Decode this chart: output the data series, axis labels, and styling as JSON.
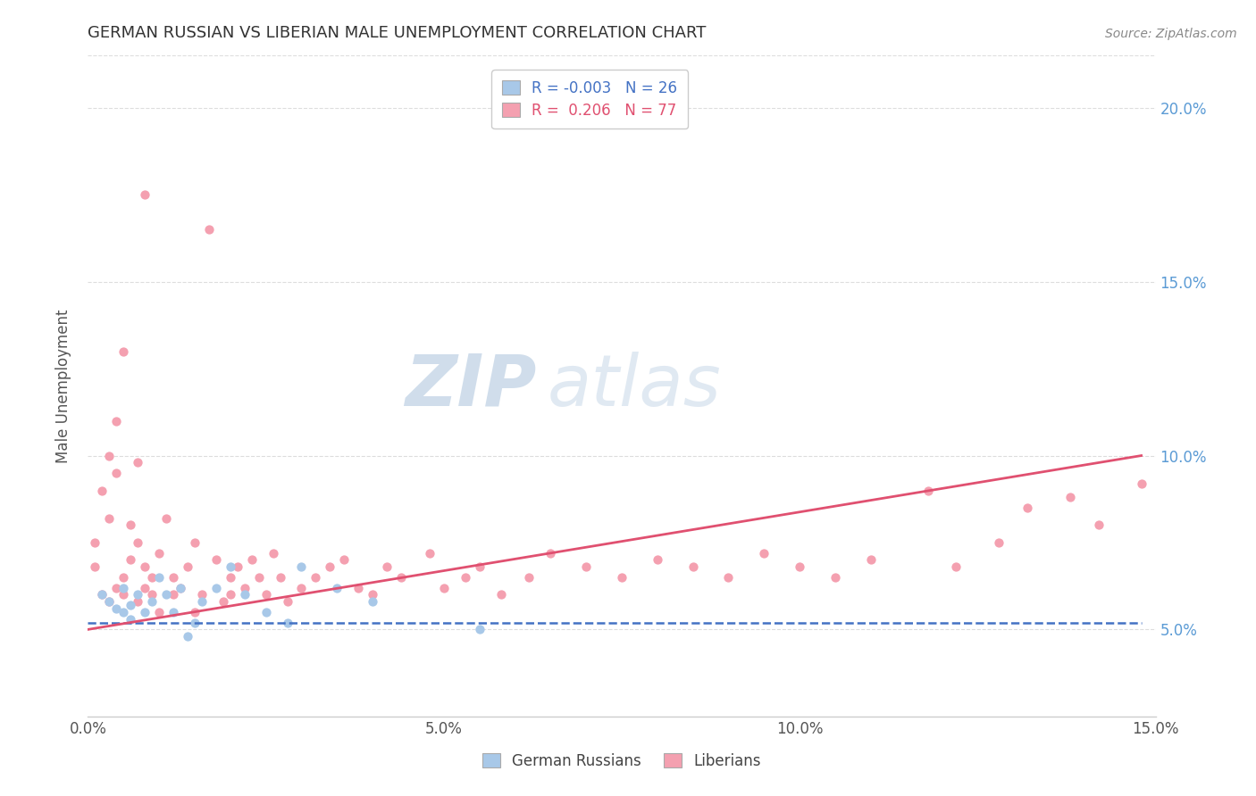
{
  "title": "GERMAN RUSSIAN VS LIBERIAN MALE UNEMPLOYMENT CORRELATION CHART",
  "source": "Source: ZipAtlas.com",
  "ylabel": "Male Unemployment",
  "xlim": [
    0.0,
    0.15
  ],
  "ylim": [
    0.025,
    0.215
  ],
  "xticks": [
    0.0,
    0.05,
    0.1,
    0.15
  ],
  "xtick_labels": [
    "0.0%",
    "5.0%",
    "10.0%",
    "15.0%"
  ],
  "yticks_right": [
    0.05,
    0.1,
    0.15,
    0.2
  ],
  "ytick_labels_right": [
    "5.0%",
    "10.0%",
    "15.0%",
    "20.0%"
  ],
  "color_blue": "#a8c8e8",
  "color_pink": "#f4a0b0",
  "color_blue_line": "#4472c4",
  "color_pink_line": "#e05070",
  "watermark_zip": "ZIP",
  "watermark_atlas": "atlas",
  "blue_scatter_x": [
    0.002,
    0.003,
    0.004,
    0.005,
    0.005,
    0.006,
    0.006,
    0.007,
    0.008,
    0.009,
    0.01,
    0.011,
    0.012,
    0.013,
    0.014,
    0.015,
    0.016,
    0.018,
    0.02,
    0.022,
    0.025,
    0.028,
    0.03,
    0.035,
    0.04,
    0.055
  ],
  "blue_scatter_y": [
    0.06,
    0.058,
    0.056,
    0.055,
    0.062,
    0.057,
    0.053,
    0.06,
    0.055,
    0.058,
    0.065,
    0.06,
    0.055,
    0.062,
    0.048,
    0.052,
    0.058,
    0.062,
    0.068,
    0.06,
    0.055,
    0.052,
    0.068,
    0.062,
    0.058,
    0.05
  ],
  "pink_scatter_x": [
    0.001,
    0.001,
    0.002,
    0.002,
    0.003,
    0.003,
    0.003,
    0.004,
    0.004,
    0.004,
    0.005,
    0.005,
    0.005,
    0.006,
    0.006,
    0.007,
    0.007,
    0.007,
    0.008,
    0.008,
    0.008,
    0.009,
    0.009,
    0.01,
    0.01,
    0.011,
    0.012,
    0.012,
    0.013,
    0.014,
    0.015,
    0.015,
    0.016,
    0.017,
    0.018,
    0.019,
    0.02,
    0.02,
    0.021,
    0.022,
    0.023,
    0.024,
    0.025,
    0.026,
    0.027,
    0.028,
    0.03,
    0.032,
    0.034,
    0.036,
    0.038,
    0.04,
    0.042,
    0.044,
    0.048,
    0.05,
    0.053,
    0.055,
    0.058,
    0.062,
    0.065,
    0.07,
    0.075,
    0.08,
    0.085,
    0.09,
    0.095,
    0.1,
    0.105,
    0.11,
    0.118,
    0.122,
    0.128,
    0.132,
    0.138,
    0.142,
    0.148
  ],
  "pink_scatter_y": [
    0.068,
    0.075,
    0.06,
    0.09,
    0.058,
    0.082,
    0.1,
    0.062,
    0.095,
    0.11,
    0.06,
    0.065,
    0.13,
    0.07,
    0.08,
    0.058,
    0.075,
    0.098,
    0.062,
    0.068,
    0.175,
    0.06,
    0.065,
    0.055,
    0.072,
    0.082,
    0.06,
    0.065,
    0.062,
    0.068,
    0.055,
    0.075,
    0.06,
    0.165,
    0.07,
    0.058,
    0.06,
    0.065,
    0.068,
    0.062,
    0.07,
    0.065,
    0.06,
    0.072,
    0.065,
    0.058,
    0.062,
    0.065,
    0.068,
    0.07,
    0.062,
    0.06,
    0.068,
    0.065,
    0.072,
    0.062,
    0.065,
    0.068,
    0.06,
    0.065,
    0.072,
    0.068,
    0.065,
    0.07,
    0.068,
    0.065,
    0.072,
    0.068,
    0.065,
    0.07,
    0.09,
    0.068,
    0.075,
    0.085,
    0.088,
    0.08,
    0.092
  ],
  "blue_line_x": [
    0.0,
    0.148
  ],
  "blue_line_y": [
    0.052,
    0.052
  ],
  "pink_line_x": [
    0.0,
    0.148
  ],
  "pink_line_y": [
    0.05,
    0.1
  ],
  "grid_color": "#dddddd",
  "title_color": "#333333",
  "source_color": "#888888",
  "axis_label_color": "#555555",
  "right_axis_color": "#5b9bd5"
}
